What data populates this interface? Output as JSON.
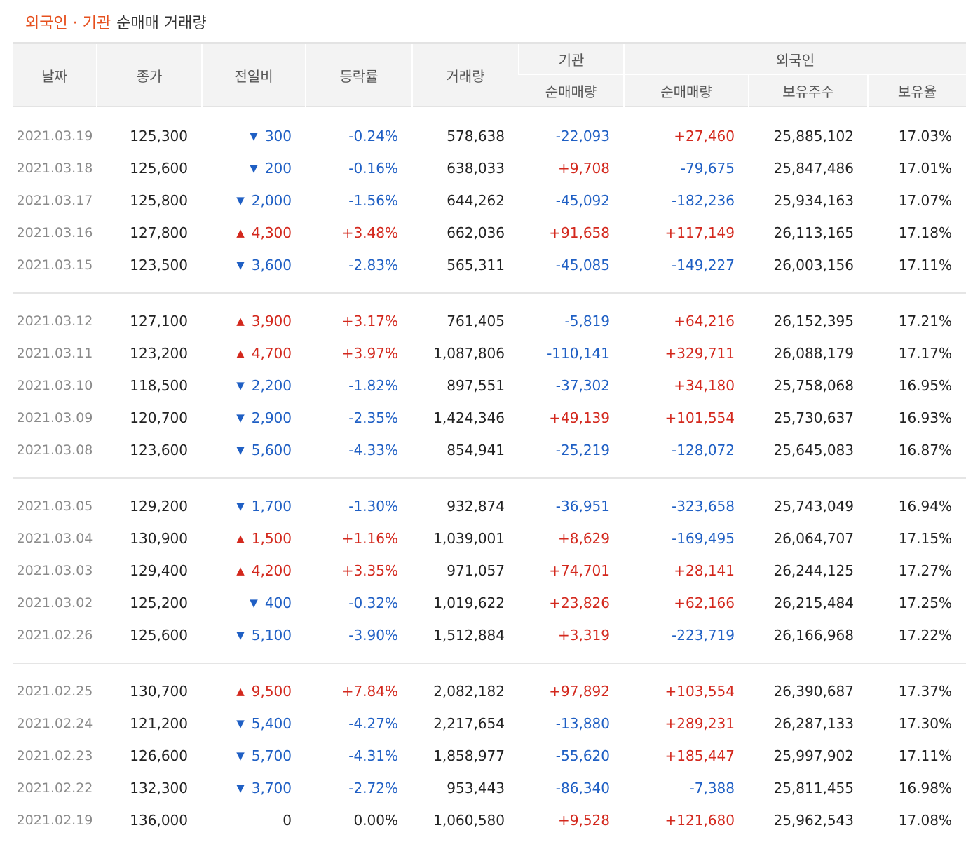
{
  "caption": {
    "accent": "외국인 · 기관",
    "rest": "순매매 거래량"
  },
  "headers": {
    "date": "날짜",
    "close": "종가",
    "change": "전일비",
    "rate": "등락률",
    "volume": "거래량",
    "inst_group": "기관",
    "foreign_group": "외국인",
    "inst_net": "순매매량",
    "foreign_net": "순매매량",
    "foreign_hold": "보유주수",
    "foreign_ratio": "보유율"
  },
  "colors": {
    "up": "#d3281d",
    "down": "#1f5fc4",
    "accent": "#e6501e"
  },
  "groups": [
    {
      "rows": [
        {
          "date": "2021.03.19",
          "close": "125,300",
          "dir": "down",
          "change": "300",
          "rate": "-0.24%",
          "volume": "578,638",
          "inst": "-22,093",
          "foreign": "+27,460",
          "hold": "25,885,102",
          "ratio": "17.03%"
        },
        {
          "date": "2021.03.18",
          "close": "125,600",
          "dir": "down",
          "change": "200",
          "rate": "-0.16%",
          "volume": "638,033",
          "inst": "+9,708",
          "foreign": "-79,675",
          "hold": "25,847,486",
          "ratio": "17.01%"
        },
        {
          "date": "2021.03.17",
          "close": "125,800",
          "dir": "down",
          "change": "2,000",
          "rate": "-1.56%",
          "volume": "644,262",
          "inst": "-45,092",
          "foreign": "-182,236",
          "hold": "25,934,163",
          "ratio": "17.07%"
        },
        {
          "date": "2021.03.16",
          "close": "127,800",
          "dir": "up",
          "change": "4,300",
          "rate": "+3.48%",
          "volume": "662,036",
          "inst": "+91,658",
          "foreign": "+117,149",
          "hold": "26,113,165",
          "ratio": "17.18%"
        },
        {
          "date": "2021.03.15",
          "close": "123,500",
          "dir": "down",
          "change": "3,600",
          "rate": "-2.83%",
          "volume": "565,311",
          "inst": "-45,085",
          "foreign": "-149,227",
          "hold": "26,003,156",
          "ratio": "17.11%"
        }
      ]
    },
    {
      "rows": [
        {
          "date": "2021.03.12",
          "close": "127,100",
          "dir": "up",
          "change": "3,900",
          "rate": "+3.17%",
          "volume": "761,405",
          "inst": "-5,819",
          "foreign": "+64,216",
          "hold": "26,152,395",
          "ratio": "17.21%"
        },
        {
          "date": "2021.03.11",
          "close": "123,200",
          "dir": "up",
          "change": "4,700",
          "rate": "+3.97%",
          "volume": "1,087,806",
          "inst": "-110,141",
          "foreign": "+329,711",
          "hold": "26,088,179",
          "ratio": "17.17%"
        },
        {
          "date": "2021.03.10",
          "close": "118,500",
          "dir": "down",
          "change": "2,200",
          "rate": "-1.82%",
          "volume": "897,551",
          "inst": "-37,302",
          "foreign": "+34,180",
          "hold": "25,758,068",
          "ratio": "16.95%"
        },
        {
          "date": "2021.03.09",
          "close": "120,700",
          "dir": "down",
          "change": "2,900",
          "rate": "-2.35%",
          "volume": "1,424,346",
          "inst": "+49,139",
          "foreign": "+101,554",
          "hold": "25,730,637",
          "ratio": "16.93%"
        },
        {
          "date": "2021.03.08",
          "close": "123,600",
          "dir": "down",
          "change": "5,600",
          "rate": "-4.33%",
          "volume": "854,941",
          "inst": "-25,219",
          "foreign": "-128,072",
          "hold": "25,645,083",
          "ratio": "16.87%"
        }
      ]
    },
    {
      "rows": [
        {
          "date": "2021.03.05",
          "close": "129,200",
          "dir": "down",
          "change": "1,700",
          "rate": "-1.30%",
          "volume": "932,874",
          "inst": "-36,951",
          "foreign": "-323,658",
          "hold": "25,743,049",
          "ratio": "16.94%"
        },
        {
          "date": "2021.03.04",
          "close": "130,900",
          "dir": "up",
          "change": "1,500",
          "rate": "+1.16%",
          "volume": "1,039,001",
          "inst": "+8,629",
          "foreign": "-169,495",
          "hold": "26,064,707",
          "ratio": "17.15%"
        },
        {
          "date": "2021.03.03",
          "close": "129,400",
          "dir": "up",
          "change": "4,200",
          "rate": "+3.35%",
          "volume": "971,057",
          "inst": "+74,701",
          "foreign": "+28,141",
          "hold": "26,244,125",
          "ratio": "17.27%"
        },
        {
          "date": "2021.03.02",
          "close": "125,200",
          "dir": "down",
          "change": "400",
          "rate": "-0.32%",
          "volume": "1,019,622",
          "inst": "+23,826",
          "foreign": "+62,166",
          "hold": "26,215,484",
          "ratio": "17.25%"
        },
        {
          "date": "2021.02.26",
          "close": "125,600",
          "dir": "down",
          "change": "5,100",
          "rate": "-3.90%",
          "volume": "1,512,884",
          "inst": "+3,319",
          "foreign": "-223,719",
          "hold": "26,166,968",
          "ratio": "17.22%"
        }
      ]
    },
    {
      "rows": [
        {
          "date": "2021.02.25",
          "close": "130,700",
          "dir": "up",
          "change": "9,500",
          "rate": "+7.84%",
          "volume": "2,082,182",
          "inst": "+97,892",
          "foreign": "+103,554",
          "hold": "26,390,687",
          "ratio": "17.37%"
        },
        {
          "date": "2021.02.24",
          "close": "121,200",
          "dir": "down",
          "change": "5,400",
          "rate": "-4.27%",
          "volume": "2,217,654",
          "inst": "-13,880",
          "foreign": "+289,231",
          "hold": "26,287,133",
          "ratio": "17.30%"
        },
        {
          "date": "2021.02.23",
          "close": "126,600",
          "dir": "down",
          "change": "5,700",
          "rate": "-4.31%",
          "volume": "1,858,977",
          "inst": "-55,620",
          "foreign": "+185,447",
          "hold": "25,997,902",
          "ratio": "17.11%"
        },
        {
          "date": "2021.02.22",
          "close": "132,300",
          "dir": "down",
          "change": "3,700",
          "rate": "-2.72%",
          "volume": "953,443",
          "inst": "-86,340",
          "foreign": "-7,388",
          "hold": "25,811,455",
          "ratio": "16.98%"
        },
        {
          "date": "2021.02.19",
          "close": "136,000",
          "dir": "flat",
          "change": "0",
          "rate": "0.00%",
          "volume": "1,060,580",
          "inst": "+9,528",
          "foreign": "+121,680",
          "hold": "25,962,543",
          "ratio": "17.08%"
        }
      ]
    }
  ]
}
